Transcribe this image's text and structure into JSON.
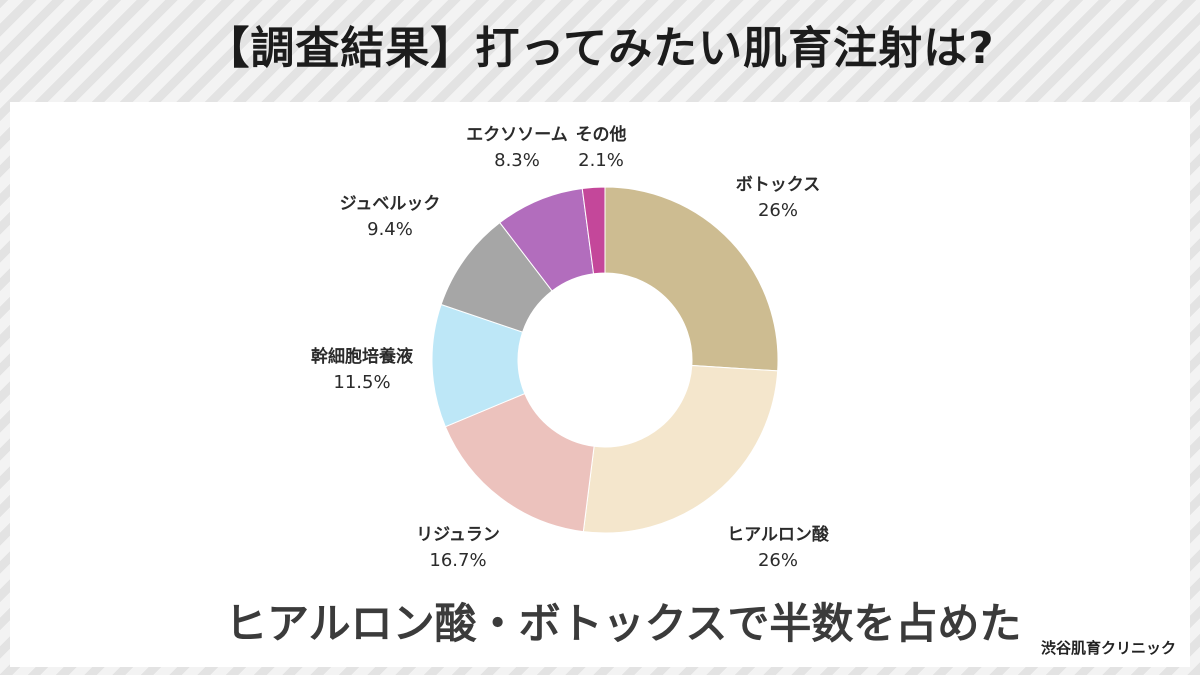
{
  "title": "【調査結果】打ってみたい肌育注射は?",
  "headline": "ヒアルロン酸・ボトックスで半数を占めた",
  "clinic": "渋谷肌育クリニック",
  "chart_data": {
    "type": "pie",
    "variant": "donut",
    "title": "【調査結果】打ってみたい肌育注射は?",
    "slices": [
      {
        "label": "ボトックス",
        "value": 26,
        "value_label": "26%",
        "color": "#cdbc91"
      },
      {
        "label": "ヒアルロン酸",
        "value": 26,
        "value_label": "26%",
        "color": "#f4e6cc"
      },
      {
        "label": "リジュラン",
        "value": 16.7,
        "value_label": "16.7%",
        "color": "#ecc2bd"
      },
      {
        "label": "幹細胞培養液",
        "value": 11.5,
        "value_label": "11.5%",
        "color": "#bde7f7"
      },
      {
        "label": "ジュベルック",
        "value": 9.4,
        "value_label": "9.4%",
        "color": "#a6a6a6"
      },
      {
        "label": "エクソソーム",
        "value": 8.3,
        "value_label": "8.3%",
        "color": "#b26dbd"
      },
      {
        "label": "その他",
        "value": 2.1,
        "value_label": "2.1%",
        "color": "#c4479a"
      }
    ]
  }
}
